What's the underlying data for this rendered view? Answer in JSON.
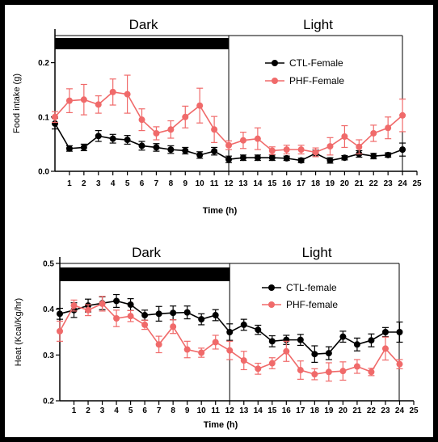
{
  "colors": {
    "ctl": "#000000",
    "phf": "#f06a6a",
    "bar": "#000000"
  },
  "chart_data": [
    {
      "type": "line",
      "phase_labels": [
        "Dark",
        "Light"
      ],
      "xlabel": "Time (h)",
      "ylabel": "Food intake (g)",
      "xlim": [
        0,
        25
      ],
      "ylim": [
        0,
        0.25
      ],
      "x_ticks": [
        1,
        2,
        3,
        4,
        5,
        6,
        7,
        8,
        9,
        10,
        11,
        12,
        13,
        14,
        15,
        16,
        17,
        18,
        19,
        20,
        21,
        22,
        23,
        24,
        25
      ],
      "y_ticks": [
        "0.0",
        "0.1",
        "0.2"
      ],
      "y_tick_values": [
        0,
        0.1,
        0.2
      ],
      "dark_period": [
        0,
        12
      ],
      "legend_position": "top-right",
      "x": [
        0,
        1,
        2,
        3,
        4,
        5,
        6,
        7,
        8,
        9,
        10,
        11,
        12,
        13,
        14,
        15,
        16,
        17,
        18,
        19,
        20,
        21,
        22,
        23,
        24
      ],
      "series": [
        {
          "name": "CTL-Female",
          "color_key": "ctl",
          "values": [
            0.088,
            0.042,
            0.044,
            0.065,
            0.06,
            0.058,
            0.047,
            0.044,
            0.04,
            0.038,
            0.03,
            0.037,
            0.022,
            0.025,
            0.025,
            0.025,
            0.024,
            0.02,
            0.033,
            0.02,
            0.025,
            0.032,
            0.028,
            0.03,
            0.04
          ],
          "errors": [
            0.01,
            0.005,
            0.006,
            0.01,
            0.008,
            0.008,
            0.008,
            0.007,
            0.007,
            0.006,
            0.006,
            0.007,
            0.006,
            0.005,
            0.005,
            0.005,
            0.004,
            0.004,
            0.006,
            0.005,
            0.004,
            0.006,
            0.005,
            0.004,
            0.012
          ]
        },
        {
          "name": "PHF-Female",
          "color_key": "phf",
          "values": [
            0.1,
            0.13,
            0.132,
            0.123,
            0.146,
            0.142,
            0.095,
            0.07,
            0.077,
            0.1,
            0.121,
            0.077,
            0.048,
            0.057,
            0.06,
            0.038,
            0.04,
            0.04,
            0.035,
            0.046,
            0.064,
            0.045,
            0.07,
            0.08,
            0.103
          ],
          "errors": [
            0.01,
            0.022,
            0.028,
            0.016,
            0.024,
            0.035,
            0.02,
            0.012,
            0.016,
            0.02,
            0.032,
            0.024,
            0.008,
            0.015,
            0.02,
            0.007,
            0.008,
            0.008,
            0.008,
            0.016,
            0.02,
            0.013,
            0.015,
            0.02,
            0.03
          ]
        }
      ]
    },
    {
      "type": "line",
      "phase_labels": [
        "Dark",
        "Light"
      ],
      "xlabel": "Time (h)",
      "ylabel": "Heat (Kcal/Kg/hr)",
      "xlim": [
        0,
        25
      ],
      "ylim": [
        0.2,
        0.5
      ],
      "x_ticks": [
        1,
        2,
        3,
        4,
        5,
        6,
        7,
        8,
        9,
        10,
        11,
        12,
        13,
        14,
        15,
        16,
        17,
        18,
        19,
        20,
        21,
        22,
        23,
        24,
        25
      ],
      "y_ticks": [
        "0.2",
        "0.3",
        "0.4",
        "0.5"
      ],
      "y_tick_values": [
        0.2,
        0.3,
        0.4,
        0.5
      ],
      "dark_period": [
        0,
        12
      ],
      "legend_position": "top-right",
      "x": [
        0,
        1,
        2,
        3,
        4,
        5,
        6,
        7,
        8,
        9,
        10,
        11,
        12,
        13,
        14,
        15,
        16,
        17,
        18,
        19,
        20,
        21,
        22,
        23,
        24
      ],
      "series": [
        {
          "name": "CTL-female",
          "color_key": "ctl",
          "values": [
            0.39,
            0.398,
            0.408,
            0.413,
            0.418,
            0.41,
            0.387,
            0.39,
            0.392,
            0.393,
            0.378,
            0.387,
            0.35,
            0.366,
            0.355,
            0.33,
            0.333,
            0.333,
            0.302,
            0.304,
            0.34,
            0.323,
            0.332,
            0.35,
            0.35
          ],
          "errors": [
            0.012,
            0.016,
            0.014,
            0.014,
            0.014,
            0.013,
            0.011,
            0.016,
            0.015,
            0.014,
            0.012,
            0.012,
            0.018,
            0.012,
            0.01,
            0.012,
            0.01,
            0.012,
            0.018,
            0.014,
            0.012,
            0.014,
            0.014,
            0.01,
            0.022
          ]
        },
        {
          "name": "PHF-female",
          "color_key": "phf",
          "values": [
            0.352,
            0.408,
            0.398,
            0.412,
            0.38,
            0.385,
            0.366,
            0.323,
            0.362,
            0.312,
            0.305,
            0.328,
            0.31,
            0.288,
            0.27,
            0.282,
            0.308,
            0.267,
            0.258,
            0.263,
            0.265,
            0.275,
            0.263,
            0.314,
            0.28
          ],
          "errors": [
            0.022,
            0.012,
            0.012,
            0.016,
            0.018,
            0.012,
            0.01,
            0.018,
            0.015,
            0.018,
            0.01,
            0.015,
            0.02,
            0.02,
            0.012,
            0.012,
            0.022,
            0.02,
            0.012,
            0.02,
            0.02,
            0.015,
            0.008,
            0.025,
            0.01
          ]
        }
      ]
    }
  ]
}
